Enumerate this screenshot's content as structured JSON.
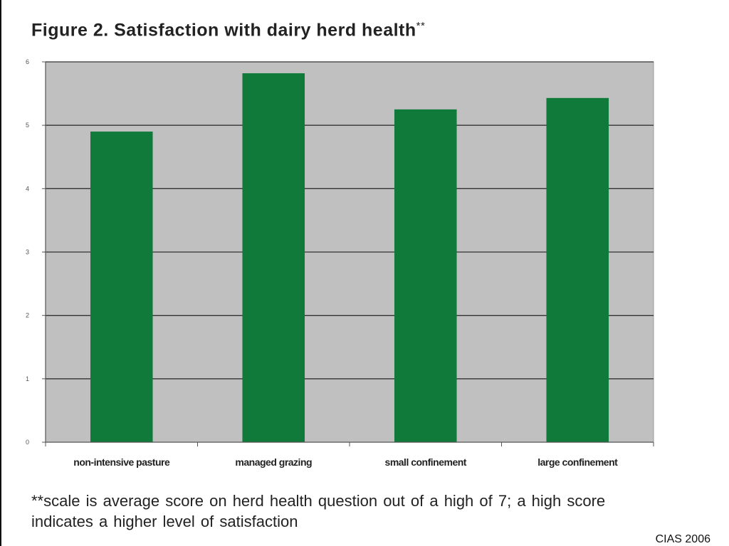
{
  "slide": {
    "title": "Figure 2. Satisfaction with dairy herd health",
    "title_mark": "**",
    "footnote": "**scale is average score on herd health question out of a high of 7; a high score indicates a higher level of satisfaction",
    "credit": "CIAS 2006"
  },
  "chart_data": {
    "type": "bar",
    "categories": [
      "non-intensive pasture",
      "managed grazing",
      "small confinement",
      "large confinement"
    ],
    "values": [
      4.9,
      5.82,
      5.25,
      5.43
    ],
    "ylim": [
      0,
      6
    ],
    "yticks": [
      "0",
      "1",
      "2",
      "3",
      "4",
      "5",
      "6"
    ],
    "grid": true,
    "legend": "none",
    "colors": {
      "bar": "#0f7a3a",
      "plot_bg": "#c0c0c0",
      "grid": "#333333",
      "axis": "#555555"
    }
  }
}
